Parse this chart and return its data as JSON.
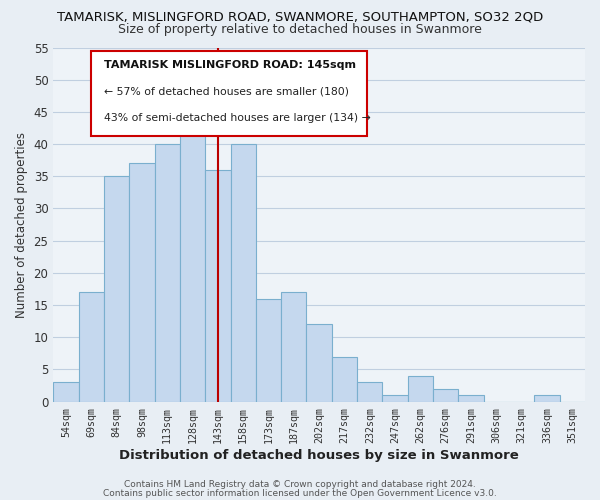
{
  "title": "TAMARISK, MISLINGFORD ROAD, SWANMORE, SOUTHAMPTON, SO32 2QD",
  "subtitle": "Size of property relative to detached houses in Swanmore",
  "xlabel": "Distribution of detached houses by size in Swanmore",
  "ylabel": "Number of detached properties",
  "bar_labels": [
    "54sqm",
    "69sqm",
    "84sqm",
    "98sqm",
    "113sqm",
    "128sqm",
    "143sqm",
    "158sqm",
    "173sqm",
    "187sqm",
    "202sqm",
    "217sqm",
    "232sqm",
    "247sqm",
    "262sqm",
    "276sqm",
    "291sqm",
    "306sqm",
    "321sqm",
    "336sqm",
    "351sqm"
  ],
  "bar_values": [
    3,
    17,
    35,
    37,
    40,
    43,
    36,
    40,
    16,
    17,
    12,
    7,
    3,
    1,
    4,
    2,
    1,
    0,
    0,
    1,
    0
  ],
  "bar_color": "#c5d8ee",
  "bar_edge_color": "#7aafce",
  "vline_x_index": 6,
  "vline_color": "#bb0000",
  "ylim": [
    0,
    55
  ],
  "yticks": [
    0,
    5,
    10,
    15,
    20,
    25,
    30,
    35,
    40,
    45,
    50,
    55
  ],
  "annotation_title": "TAMARISK MISLINGFORD ROAD: 145sqm",
  "annotation_line1": "← 57% of detached houses are smaller (180)",
  "annotation_line2": "43% of semi-detached houses are larger (134) →",
  "footer_line1": "Contains HM Land Registry data © Crown copyright and database right 2024.",
  "footer_line2": "Contains public sector information licensed under the Open Government Licence v3.0.",
  "bg_color": "#e8eef4",
  "plot_bg_color": "#eef3f8",
  "grid_color": "#c0cfe0"
}
